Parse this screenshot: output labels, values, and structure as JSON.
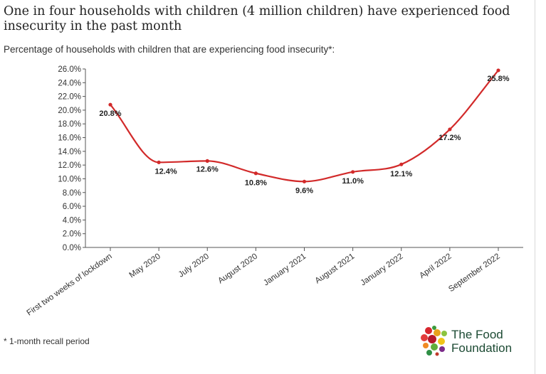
{
  "title": "One in four households with children (4 million children) have experienced food insecurity in the past month",
  "subtitle": "Percentage of households with children that are experiencing food insecurity*:",
  "footnote": "* 1-month recall period",
  "logo": {
    "line1": "The Food",
    "line2": "Foundation",
    "icon": "fruit-veg-dots-icon"
  },
  "colors": {
    "line": "#d22a2a",
    "logo_text": "#1c4a33"
  },
  "chart_data": {
    "type": "line",
    "categories": [
      "First two weeks of lockdown",
      "May 2020",
      "July 2020",
      "August 2020",
      "January 2021",
      "August 2021",
      "January 2022",
      "April 2022",
      "September 2022"
    ],
    "values": [
      20.8,
      12.4,
      12.6,
      10.8,
      9.6,
      11.0,
      12.1,
      17.2,
      25.8
    ],
    "data_labels": [
      "20.8%",
      "12.4%",
      "12.6%",
      "10.8%",
      "9.6%",
      "11.0%",
      "12.1%",
      "17.2%",
      "25.8%"
    ],
    "y_ticks": [
      "0.0%",
      "2.0%",
      "4.0%",
      "6.0%",
      "8.0%",
      "10.0%",
      "12.0%",
      "14.0%",
      "16.0%",
      "18.0%",
      "20.0%",
      "22.0%",
      "24.0%",
      "26.0%"
    ],
    "ylim": [
      0,
      26
    ],
    "grid": false,
    "legend": "none",
    "smooth": true
  }
}
